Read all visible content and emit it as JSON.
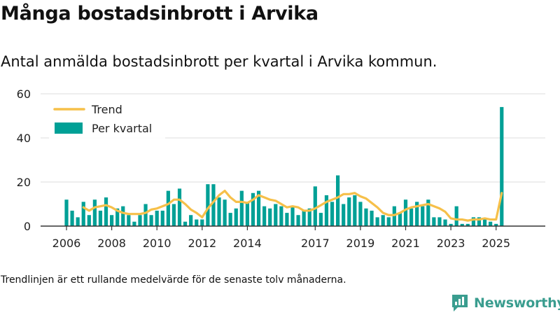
{
  "title": "Många bostadsinbrott i Arvika",
  "subtitle": "Antal anmälda bostadsinbrott per kvartal i Arvika kommun.",
  "footnote": "Trendlinjen är ett rullande medelvärde för de senaste tolv månaderna.",
  "brand": "Newsworthy",
  "colors": {
    "bar": "#00a096",
    "trend": "#f6c04a",
    "grid": "#dddddd",
    "axis": "#333333",
    "brand": "#3a9d8f"
  },
  "chart_data": {
    "type": "bar",
    "title": "Många bostadsinbrott i Arvika",
    "xlabel": "",
    "ylabel": "",
    "ylim": [
      0,
      60
    ],
    "yticks": [
      0,
      20,
      40,
      60
    ],
    "xticks": [
      2006,
      2008,
      2010,
      2012,
      2014,
      2017,
      2019,
      2021,
      2023,
      2025
    ],
    "legend": {
      "position": "top-left",
      "entries": [
        "Trend",
        "Per kvartal"
      ]
    },
    "x_start_year": 2006,
    "quarters_per_year": 4,
    "series": [
      {
        "name": "Per kvartal",
        "type": "bar",
        "values": [
          12,
          7,
          4,
          11,
          5,
          12,
          7,
          13,
          5,
          8,
          9,
          5,
          2,
          5,
          10,
          5,
          7,
          7,
          16,
          10,
          17,
          2,
          5,
          3,
          3,
          19,
          19,
          13,
          12,
          6,
          8,
          16,
          11,
          15,
          16,
          9,
          8,
          10,
          9,
          6,
          9,
          5,
          7,
          8,
          18,
          6,
          14,
          11,
          23,
          10,
          13,
          14,
          11,
          8,
          7,
          4,
          5,
          4,
          9,
          6,
          12,
          8,
          11,
          9,
          12,
          4,
          4,
          3,
          1,
          9,
          1,
          1,
          4,
          4,
          3,
          2,
          1,
          54
        ]
      },
      {
        "name": "Trend",
        "type": "line",
        "values": [
          null,
          null,
          null,
          8.5,
          7,
          8.5,
          9,
          9.5,
          8.5,
          7,
          6,
          5.5,
          5.5,
          5.5,
          6,
          7.5,
          8,
          9,
          10,
          12,
          12,
          10,
          7.5,
          6,
          4,
          8,
          11,
          14,
          16,
          13,
          11,
          11,
          10.5,
          12,
          14,
          13,
          12,
          11.5,
          10,
          8.5,
          9,
          8.5,
          7,
          7,
          8,
          9.5,
          11,
          12,
          13,
          14.5,
          14.5,
          15,
          13.5,
          12.5,
          10.5,
          8.5,
          6,
          5,
          5,
          6,
          7.5,
          8.5,
          9,
          9.5,
          10,
          9,
          8,
          6.5,
          3.5,
          3,
          3,
          2.5,
          3,
          3,
          3.5,
          3,
          3,
          15
        ]
      }
    ]
  }
}
